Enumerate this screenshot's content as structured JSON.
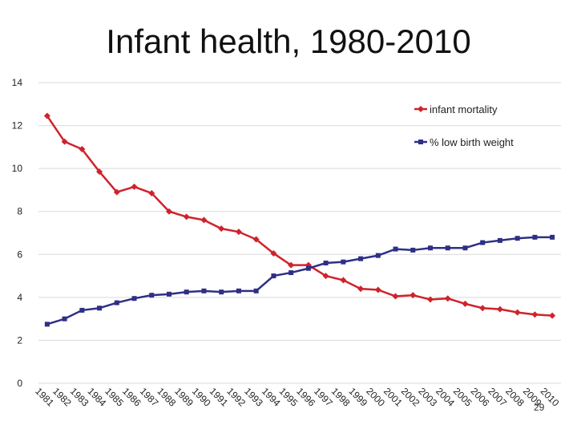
{
  "slide": {
    "title": "Infant health, 1980-2010",
    "page_number": "29"
  },
  "colors": {
    "infant_mortality": "#d0222b",
    "low_birth_weight": "#2e2f86",
    "grid": "#d9d9d9"
  },
  "chart_data": {
    "type": "line",
    "title": "",
    "xlabel": "",
    "ylabel": "",
    "ylim": [
      0,
      14
    ],
    "y_ticks": [
      0,
      2,
      4,
      6,
      8,
      10,
      12,
      14
    ],
    "grid": true,
    "legend_position": "top-right",
    "categories": [
      "1981",
      "1982",
      "1983",
      "1984",
      "1985",
      "1986",
      "1987",
      "1988",
      "1989",
      "1990",
      "1991",
      "1992",
      "1993",
      "1994",
      "1995",
      "1996",
      "1997",
      "1998",
      "1999",
      "2000",
      "2001",
      "2002",
      "2003",
      "2004",
      "2005",
      "2006",
      "2007",
      "2008",
      "2009",
      "2010"
    ],
    "series": [
      {
        "name": "infant mortality",
        "marker": "diamond",
        "values": [
          12.45,
          11.25,
          10.9,
          9.85,
          8.9,
          9.15,
          8.85,
          8.0,
          7.75,
          7.6,
          7.2,
          7.05,
          6.7,
          6.05,
          5.5,
          5.5,
          5.0,
          4.8,
          4.4,
          4.35,
          4.05,
          4.1,
          3.9,
          3.95,
          3.7,
          3.5,
          3.45,
          3.3,
          3.2,
          3.15
        ]
      },
      {
        "name": "% low birth weight",
        "marker": "square",
        "values": [
          2.75,
          3.0,
          3.4,
          3.5,
          3.75,
          3.95,
          4.1,
          4.15,
          4.25,
          4.3,
          4.25,
          4.3,
          4.3,
          5.0,
          5.15,
          5.35,
          5.6,
          5.65,
          5.8,
          5.95,
          6.25,
          6.2,
          6.3,
          6.3,
          6.3,
          6.55,
          6.65,
          6.75,
          6.8,
          6.8
        ]
      }
    ]
  }
}
